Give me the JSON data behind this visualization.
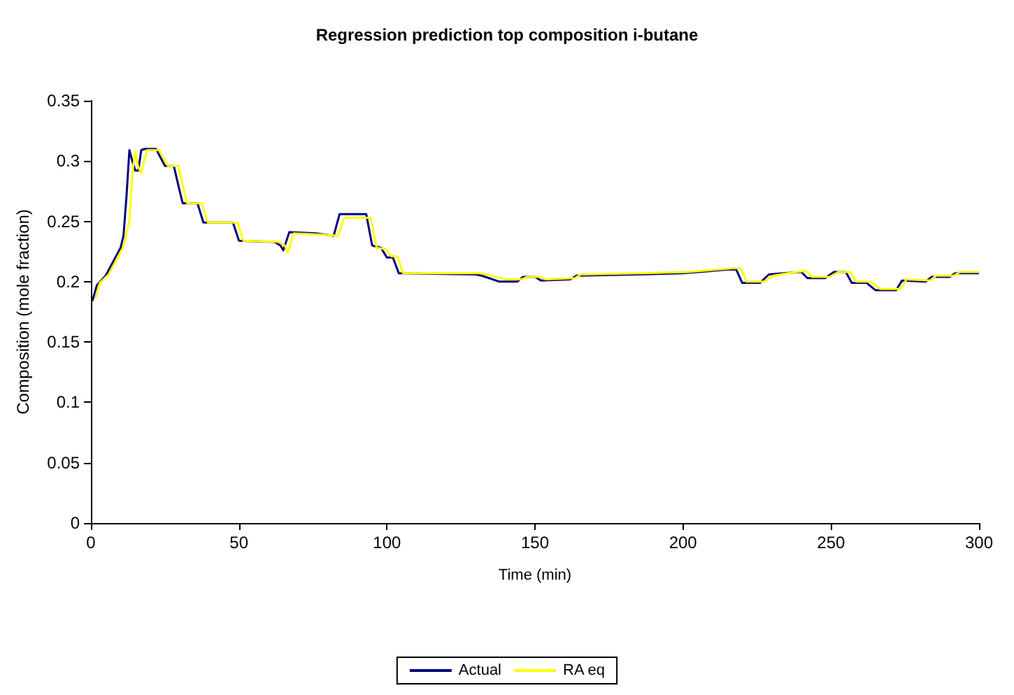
{
  "chart_data": {
    "type": "line",
    "title": "Regression prediction top composition i-butane",
    "xlabel": "Time (min)",
    "ylabel": "Composition (mole fraction)",
    "xlim": [
      0,
      300
    ],
    "xticks": [
      0,
      50,
      100,
      150,
      200,
      250,
      300
    ],
    "ylim": [
      0,
      0.35
    ],
    "yticks": [
      0,
      0.05,
      0.1,
      0.15,
      0.2,
      0.25,
      0.3,
      0.35
    ],
    "grid": false,
    "legend": "bottom",
    "marker": "none",
    "line_style": "solid",
    "series": [
      {
        "name": "Actual",
        "color": "#000080",
        "x": [
          0.5,
          2,
          5,
          10,
          11,
          12,
          13,
          14,
          15,
          16,
          17,
          18,
          22,
          25,
          28,
          30,
          31,
          36,
          38,
          48,
          50,
          62,
          64,
          65,
          67,
          76,
          82,
          84,
          93,
          95,
          98,
          100,
          102,
          104,
          130,
          132,
          138,
          144,
          146,
          150,
          152,
          162,
          164,
          185,
          200,
          215,
          218,
          220,
          226,
          229,
          234,
          240,
          242,
          248,
          251,
          255,
          257,
          262,
          265,
          272,
          274,
          282,
          284,
          290,
          292,
          300
        ],
        "values": [
          0.184,
          0.197,
          0.205,
          0.228,
          0.238,
          0.27,
          0.309,
          0.3,
          0.292,
          0.292,
          0.309,
          0.31,
          0.31,
          0.296,
          0.296,
          0.275,
          0.265,
          0.265,
          0.249,
          0.249,
          0.234,
          0.233,
          0.23,
          0.226,
          0.241,
          0.24,
          0.238,
          0.256,
          0.256,
          0.23,
          0.228,
          0.22,
          0.22,
          0.207,
          0.206,
          0.205,
          0.2,
          0.2,
          0.204,
          0.204,
          0.201,
          0.202,
          0.205,
          0.206,
          0.207,
          0.21,
          0.21,
          0.199,
          0.199,
          0.206,
          0.207,
          0.208,
          0.203,
          0.203,
          0.208,
          0.208,
          0.199,
          0.199,
          0.193,
          0.193,
          0.201,
          0.2,
          0.204,
          0.204,
          0.207,
          0.207
        ]
      },
      {
        "name": "RA eq",
        "color": "#ffff00",
        "x": [
          1.5,
          3,
          6,
          11,
          12,
          13,
          14,
          15,
          16,
          17,
          18,
          19,
          23,
          26,
          29.5,
          31.5,
          32.5,
          37.5,
          39.5,
          49.5,
          51.5,
          63.5,
          65.5,
          66.5,
          68.5,
          77.5,
          83.5,
          85.5,
          94.5,
          96.5,
          99.5,
          101.5,
          103.5,
          105.5,
          131.5,
          133.5,
          139.5,
          145.5,
          147.5,
          151.5,
          153.5,
          163.5,
          165.5,
          186.5,
          201.5,
          216.5,
          219.5,
          221.5,
          227.5,
          230.5,
          235.5,
          241.5,
          243.5,
          249.5,
          252.5,
          256.5,
          258.5,
          263.5,
          266.5,
          273.5,
          275.5,
          283.5,
          285.5,
          291.5,
          293.5,
          300
        ],
        "values": [
          0.186,
          0.199,
          0.206,
          0.229,
          0.24,
          0.25,
          0.29,
          0.308,
          0.295,
          0.29,
          0.3,
          0.309,
          0.309,
          0.296,
          0.296,
          0.275,
          0.265,
          0.265,
          0.249,
          0.249,
          0.234,
          0.233,
          0.23,
          0.224,
          0.24,
          0.239,
          0.238,
          0.253,
          0.253,
          0.228,
          0.227,
          0.221,
          0.221,
          0.207,
          0.207,
          0.206,
          0.202,
          0.202,
          0.204,
          0.204,
          0.202,
          0.203,
          0.206,
          0.207,
          0.208,
          0.211,
          0.211,
          0.2,
          0.2,
          0.205,
          0.207,
          0.209,
          0.204,
          0.204,
          0.208,
          0.208,
          0.2,
          0.2,
          0.194,
          0.194,
          0.202,
          0.201,
          0.205,
          0.205,
          0.208,
          0.208
        ]
      }
    ]
  }
}
